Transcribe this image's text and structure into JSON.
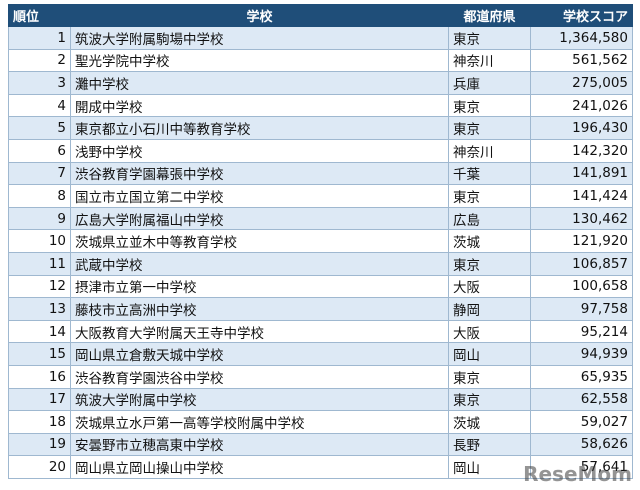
{
  "table": {
    "header": [
      "順位",
      "学校",
      "都道府県",
      "学校スコア"
    ],
    "rows": [
      [
        1,
        "筑波大学附属駒場中学校",
        "東京",
        "1,364,580"
      ],
      [
        2,
        "聖光学院中学校",
        "神奈川",
        "561,562"
      ],
      [
        3,
        "灘中学校",
        "兵庫",
        "275,005"
      ],
      [
        4,
        "開成中学校",
        "東京",
        "241,026"
      ],
      [
        5,
        "東京都立小石川中等教育学校",
        "東京",
        "196,430"
      ],
      [
        6,
        "浅野中学校",
        "神奈川",
        "142,320"
      ],
      [
        7,
        "渋谷教育学園幕張中学校",
        "千葉",
        "141,891"
      ],
      [
        8,
        "国立市立国立第二中学校",
        "東京",
        "141,424"
      ],
      [
        9,
        "広島大学附属福山中学校",
        "広島",
        "130,462"
      ],
      [
        10,
        "茨城県立並木中等教育学校",
        "茨城",
        "121,920"
      ],
      [
        11,
        "武蔵中学校",
        "東京",
        "106,857"
      ],
      [
        12,
        "摂津市立第一中学校",
        "大阪",
        "100,658"
      ],
      [
        13,
        "藤枝市立高洲中学校",
        "静岡",
        "97,758"
      ],
      [
        14,
        "大阪教育大学附属天王寺中学校",
        "大阪",
        "95,214"
      ],
      [
        15,
        "岡山県立倉敷天城中学校",
        "岡山",
        "94,939"
      ],
      [
        16,
        "渋谷教育学園渋谷中学校",
        "東京",
        "65,935"
      ],
      [
        17,
        "筑波大学附属中学校",
        "東京",
        "62,558"
      ],
      [
        18,
        "茨城県立水戸第一高等学校附属中学校",
        "茨城",
        "59,027"
      ],
      [
        19,
        "安曇野市立穂高東中学校",
        "長野",
        "58,626"
      ],
      [
        20,
        "岡山県立岡山操山中学校",
        "岡山",
        "57,641"
      ]
    ]
  },
  "watermark": "ReseMom"
}
